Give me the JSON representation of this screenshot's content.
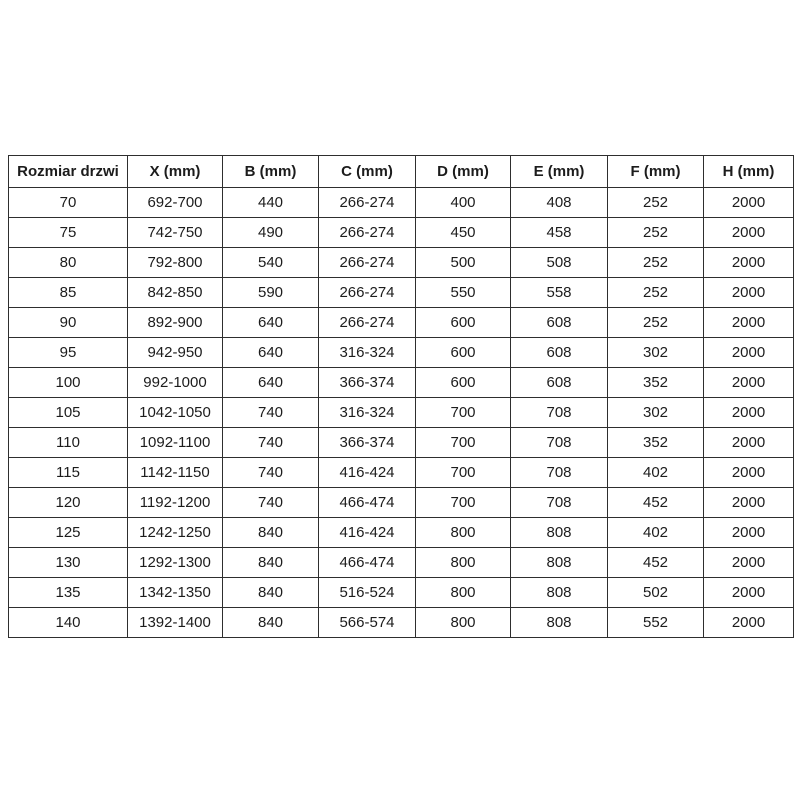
{
  "colors": {
    "background": "#ffffff",
    "border": "#2e2e2e",
    "text": "#1c1c1c"
  },
  "chart_data": {
    "type": "table",
    "columns": [
      "Rozmiar drzwi",
      "X (mm)",
      "B (mm)",
      "C (mm)",
      "D (mm)",
      "E (mm)",
      "F (mm)",
      "H (mm)"
    ],
    "rows": [
      [
        "70",
        "692-700",
        "440",
        "266-274",
        "400",
        "408",
        "252",
        "2000"
      ],
      [
        "75",
        "742-750",
        "490",
        "266-274",
        "450",
        "458",
        "252",
        "2000"
      ],
      [
        "80",
        "792-800",
        "540",
        "266-274",
        "500",
        "508",
        "252",
        "2000"
      ],
      [
        "85",
        "842-850",
        "590",
        "266-274",
        "550",
        "558",
        "252",
        "2000"
      ],
      [
        "90",
        "892-900",
        "640",
        "266-274",
        "600",
        "608",
        "252",
        "2000"
      ],
      [
        "95",
        "942-950",
        "640",
        "316-324",
        "600",
        "608",
        "302",
        "2000"
      ],
      [
        "100",
        "992-1000",
        "640",
        "366-374",
        "600",
        "608",
        "352",
        "2000"
      ],
      [
        "105",
        "1042-1050",
        "740",
        "316-324",
        "700",
        "708",
        "302",
        "2000"
      ],
      [
        "110",
        "1092-1100",
        "740",
        "366-374",
        "700",
        "708",
        "352",
        "2000"
      ],
      [
        "115",
        "1142-1150",
        "740",
        "416-424",
        "700",
        "708",
        "402",
        "2000"
      ],
      [
        "120",
        "1192-1200",
        "740",
        "466-474",
        "700",
        "708",
        "452",
        "2000"
      ],
      [
        "125",
        "1242-1250",
        "840",
        "416-424",
        "800",
        "808",
        "402",
        "2000"
      ],
      [
        "130",
        "1292-1300",
        "840",
        "466-474",
        "800",
        "808",
        "452",
        "2000"
      ],
      [
        "135",
        "1342-1350",
        "840",
        "516-524",
        "800",
        "808",
        "502",
        "2000"
      ],
      [
        "140",
        "1392-1400",
        "840",
        "566-574",
        "800",
        "808",
        "552",
        "2000"
      ]
    ]
  }
}
